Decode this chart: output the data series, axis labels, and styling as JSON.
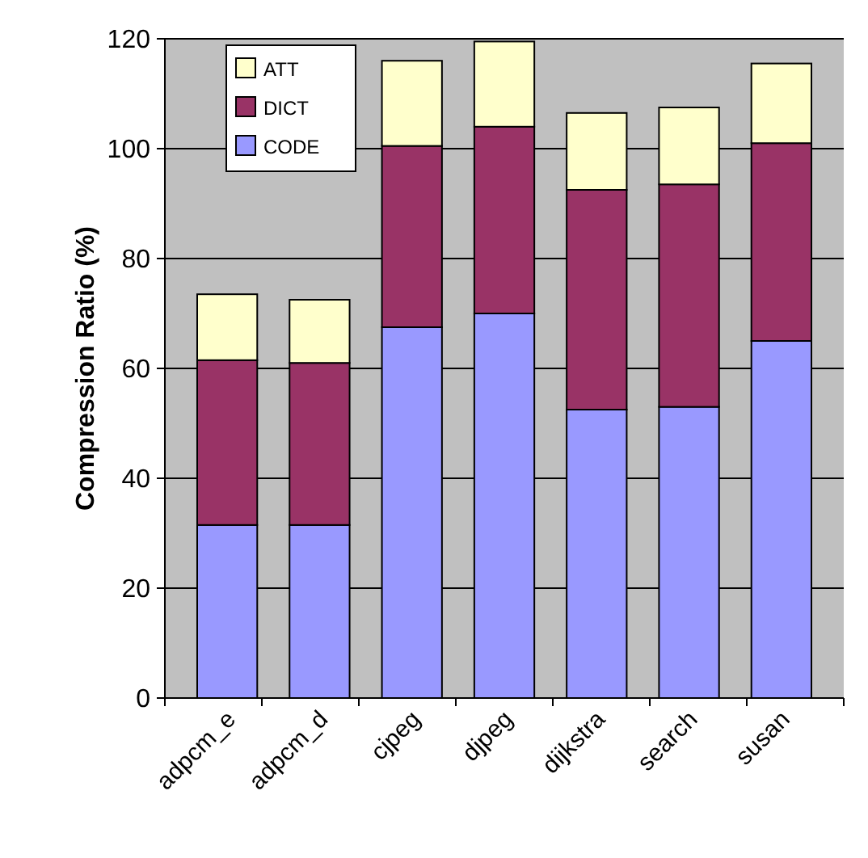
{
  "chart_data": {
    "type": "bar",
    "stacked": true,
    "ylabel": "Compression Ratio (%)",
    "categories": [
      "adpcm_e",
      "adpcm_d",
      "cjpeg",
      "djpeg",
      "dijkstra",
      "search",
      "susan"
    ],
    "series": [
      {
        "name": "CODE",
        "color": "#9999ff",
        "values": [
          31.5,
          31.5,
          67.5,
          70,
          52.5,
          53,
          65
        ]
      },
      {
        "name": "DICT",
        "color": "#993366",
        "values": [
          30,
          29.5,
          33,
          34,
          40,
          40.5,
          36
        ]
      },
      {
        "name": "ATT",
        "color": "#ffffcc",
        "values": [
          12,
          11.5,
          15.5,
          15.5,
          14,
          14,
          14.5
        ]
      }
    ],
    "ylim": [
      0,
      120
    ],
    "yticks": [
      0,
      20,
      40,
      60,
      80,
      100,
      120
    ],
    "grid": "y",
    "legend": "top left"
  }
}
